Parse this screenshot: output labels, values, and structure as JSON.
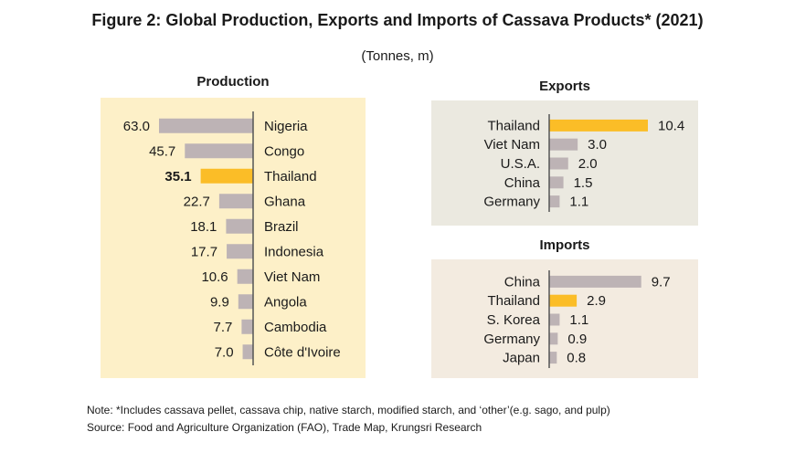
{
  "title": "Figure 2: Global Production, Exports and Imports of Cassava Products* (2021)",
  "subtitle": "(Tonnes, m)",
  "colors": {
    "production_bg": "#fdf0c8",
    "exports_bg": "#ebe9e0",
    "imports_bg": "#f3ebe0",
    "bar_default": "#bdb3b5",
    "bar_highlight": "#fbbd27",
    "axis": "#555555"
  },
  "chart_data": [
    {
      "id": "production",
      "type": "bar",
      "orientation": "horizontal",
      "direction": "left",
      "title": "Production",
      "categories": [
        "Nigeria",
        "Congo",
        "Thailand",
        "Ghana",
        "Brazil",
        "Indonesia",
        "Viet Nam",
        "Angola",
        "Cambodia",
        "Côte d'Ivoire"
      ],
      "values": [
        63.0,
        45.7,
        35.1,
        22.7,
        18.1,
        17.7,
        10.6,
        9.9,
        7.7,
        7.0
      ],
      "value_labels": [
        "63.0",
        "45.7",
        "35.1",
        "22.7",
        "18.1",
        "17.7",
        "10.6",
        "9.9",
        "7.7",
        "7.0"
      ],
      "highlight": "Thailand",
      "xlim": [
        0,
        63.0
      ]
    },
    {
      "id": "exports",
      "type": "bar",
      "orientation": "horizontal",
      "direction": "right",
      "title": "Exports",
      "categories": [
        "Thailand",
        "Viet Nam",
        "U.S.A.",
        "China",
        "Germany"
      ],
      "values": [
        10.4,
        3.0,
        2.0,
        1.5,
        1.1
      ],
      "value_labels": [
        "10.4",
        "3.0",
        "2.0",
        "1.5",
        "1.1"
      ],
      "highlight": "Thailand",
      "xlim": [
        0,
        10.4
      ]
    },
    {
      "id": "imports",
      "type": "bar",
      "orientation": "horizontal",
      "direction": "right",
      "title": "Imports",
      "categories": [
        "China",
        "Thailand",
        "S. Korea",
        "Germany",
        "Japan"
      ],
      "values": [
        9.7,
        2.9,
        1.1,
        0.9,
        0.8
      ],
      "value_labels": [
        "9.7",
        "2.9",
        "1.1",
        "0.9",
        "0.8"
      ],
      "highlight": "Thailand",
      "xlim": [
        0,
        10.4
      ]
    }
  ],
  "notes": {
    "note": "Note: *Includes cassava pellet, cassava chip, native starch, modified starch, and ‘other’(e.g. sago, and pulp)",
    "source": "Source: Food and Agriculture Organization (FAO), Trade Map, Krungsri Research"
  }
}
